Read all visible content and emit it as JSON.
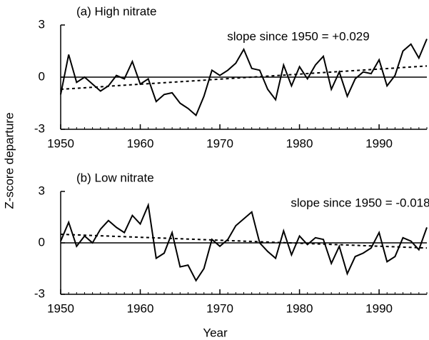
{
  "chart_data": [
    {
      "type": "line",
      "title": "(a) High nitrate",
      "annotation": "slope since 1950 = +0.029",
      "ylabel": "Z-score departure",
      "x": [
        1950,
        1951,
        1952,
        1953,
        1954,
        1955,
        1956,
        1957,
        1958,
        1959,
        1960,
        1961,
        1962,
        1963,
        1964,
        1965,
        1966,
        1967,
        1968,
        1969,
        1970,
        1971,
        1972,
        1973,
        1974,
        1975,
        1976,
        1977,
        1978,
        1979,
        1980,
        1981,
        1982,
        1983,
        1984,
        1985,
        1986,
        1987,
        1988,
        1989,
        1990,
        1991,
        1992,
        1993,
        1994,
        1995,
        1996
      ],
      "series": [
        {
          "color": "#000000",
          "values": [
            -1.0,
            1.3,
            -0.3,
            0.0,
            -0.4,
            -0.8,
            -0.5,
            0.1,
            -0.1,
            0.9,
            -0.4,
            -0.1,
            -1.4,
            -1.0,
            -0.9,
            -1.5,
            -1.8,
            -2.2,
            -1.1,
            0.4,
            0.1,
            0.4,
            0.8,
            1.6,
            0.5,
            0.4,
            -0.7,
            -1.3,
            0.7,
            -0.5,
            0.6,
            -0.1,
            0.7,
            1.2,
            -0.7,
            0.3,
            -1.1,
            -0.1,
            0.3,
            0.2,
            1.0,
            -0.5,
            0.1,
            1.5,
            1.9,
            1.1,
            2.2
          ]
        },
        {
          "color": "#000000",
          "dashed": true,
          "x": [
            1950,
            1996
          ],
          "values": [
            -0.7,
            0.64
          ]
        }
      ],
      "hline": 0,
      "xlim": [
        1950,
        1996
      ],
      "xticks": [
        1950,
        1960,
        1970,
        1980,
        1990
      ],
      "ylim": [
        -3,
        3
      ],
      "yticks": [
        -3,
        0,
        3
      ]
    },
    {
      "type": "line",
      "title": "(b) Low nitrate",
      "annotation": "slope since 1950 = -0.018",
      "xlabel": "Year",
      "x": [
        1950,
        1951,
        1952,
        1953,
        1954,
        1955,
        1956,
        1957,
        1958,
        1959,
        1960,
        1961,
        1962,
        1963,
        1964,
        1965,
        1966,
        1967,
        1968,
        1969,
        1970,
        1971,
        1972,
        1973,
        1974,
        1975,
        1976,
        1977,
        1978,
        1979,
        1980,
        1981,
        1982,
        1983,
        1984,
        1985,
        1986,
        1987,
        1988,
        1989,
        1990,
        1991,
        1992,
        1993,
        1994,
        1995,
        1996
      ],
      "series": [
        {
          "color": "#000000",
          "values": [
            0.1,
            1.2,
            -0.2,
            0.4,
            0.0,
            0.8,
            1.3,
            0.9,
            0.6,
            1.6,
            1.1,
            2.2,
            -0.9,
            -0.6,
            0.6,
            -1.4,
            -1.3,
            -2.2,
            -1.5,
            0.2,
            -0.2,
            0.2,
            1.0,
            1.4,
            1.8,
            0.0,
            -0.5,
            -0.9,
            0.7,
            -0.7,
            0.4,
            -0.1,
            0.3,
            0.2,
            -1.2,
            -0.2,
            -1.8,
            -0.8,
            -0.6,
            -0.3,
            0.6,
            -1.1,
            -0.8,
            0.3,
            0.1,
            -0.4,
            0.9
          ]
        },
        {
          "color": "#000000",
          "dashed": true,
          "x": [
            1950,
            1996
          ],
          "values": [
            0.5,
            -0.3
          ]
        }
      ],
      "hline": 0,
      "xlim": [
        1950,
        1996
      ],
      "xticks": [
        1950,
        1960,
        1970,
        1980,
        1990
      ],
      "ylim": [
        -3,
        3
      ],
      "yticks": [
        -3,
        0,
        3
      ]
    }
  ]
}
